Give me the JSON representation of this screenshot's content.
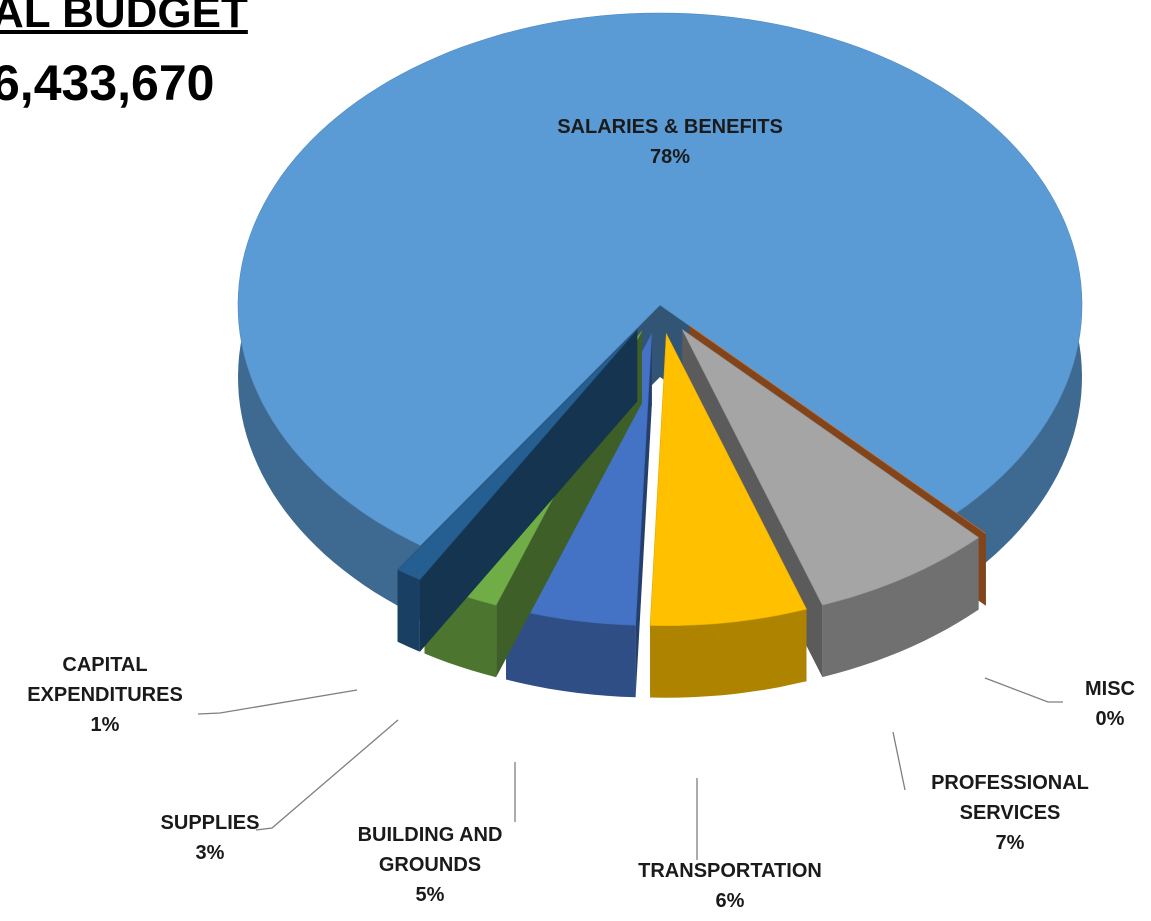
{
  "chart_data": {
    "type": "pie3d",
    "title": "AL BUDGET",
    "subtitle": "6,433,670",
    "categories": [
      "SALARIES & BENEFITS",
      "MISC",
      "PROFESSIONAL SERVICES",
      "TRANSPORTATION",
      "BUILDING AND GROUNDS",
      "SUPPLIES",
      "CAPITAL EXPENDITURES"
    ],
    "values": [
      78,
      0,
      7,
      6,
      5,
      3,
      1
    ],
    "value_labels": [
      "78%",
      "0%",
      "7%",
      "6%",
      "5%",
      "3%",
      "1%"
    ],
    "colors": [
      "#5b9bd5",
      "#ed7d31",
      "#a5a5a5",
      "#ffc000",
      "#4472c4",
      "#70ad47",
      "#255e91"
    ]
  }
}
